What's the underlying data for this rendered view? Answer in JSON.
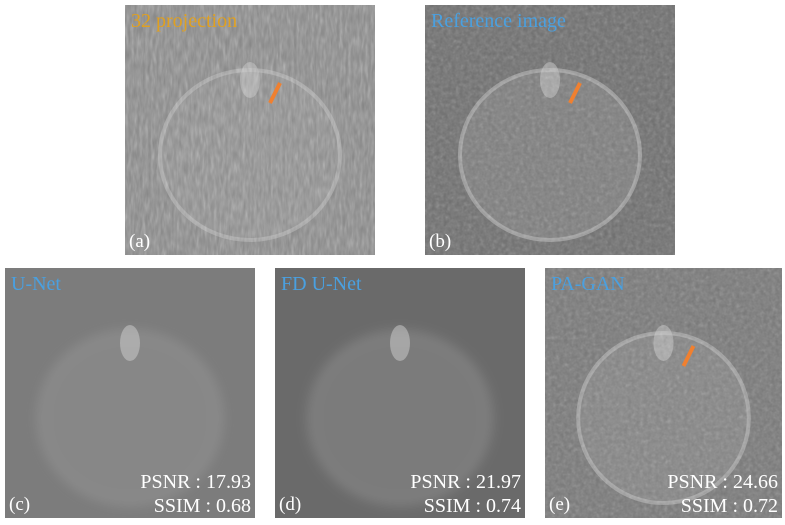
{
  "panels": [
    {
      "title": "32 projection",
      "tag": "(a)"
    },
    {
      "title": "Reference image",
      "tag": "(b)"
    },
    {
      "title": "U-Net",
      "tag": "(c)",
      "metrics": [
        "PSNR : 17.93",
        "SSIM : 0.68"
      ]
    },
    {
      "title": "FD U-Net",
      "tag": "(d)",
      "metrics": [
        "PSNR : 21.97",
        "SSIM : 0.74"
      ]
    },
    {
      "title": "PA-GAN",
      "tag": "(e)",
      "metrics": [
        "PSNR : 24.66",
        "SSIM : 0.72"
      ]
    }
  ]
}
